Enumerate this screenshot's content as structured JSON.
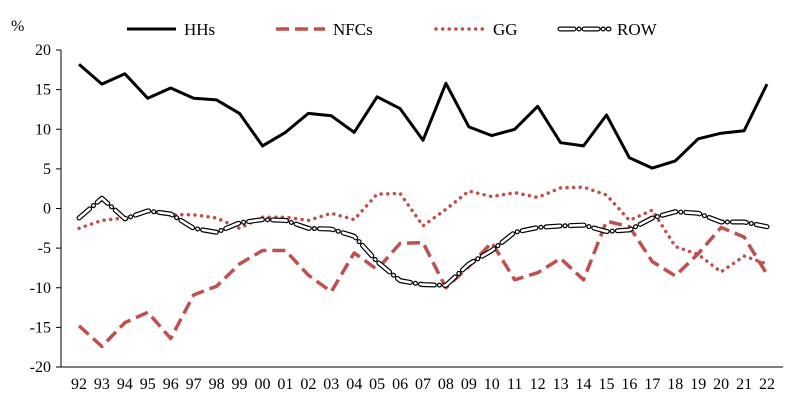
{
  "chart_data": {
    "type": "line",
    "ylabel": "%",
    "ylim": [
      -20,
      20
    ],
    "yticks": [
      "20",
      "15",
      "10",
      "5",
      "0",
      "-5",
      "-10",
      "-15",
      "-20"
    ],
    "categories": [
      "92",
      "93",
      "94",
      "95",
      "96",
      "97",
      "98",
      "99",
      "00",
      "01",
      "02",
      "03",
      "04",
      "05",
      "06",
      "07",
      "08",
      "09",
      "10",
      "11",
      "12",
      "13",
      "14",
      "15",
      "16",
      "17",
      "18",
      "19",
      "20",
      "21",
      "22"
    ],
    "legend_position": "top",
    "grid": false,
    "series": [
      {
        "name": "HHs",
        "color": "#000000",
        "style": "solid",
        "values": [
          18.2,
          15.7,
          17.0,
          13.9,
          15.2,
          13.9,
          13.7,
          12.0,
          7.9,
          9.6,
          12.0,
          11.7,
          9.6,
          14.1,
          12.6,
          8.6,
          15.8,
          10.3,
          9.2,
          10.0,
          12.9,
          8.3,
          7.9,
          11.8,
          6.4,
          5.1,
          6.0,
          8.8,
          9.5,
          9.8,
          15.7
        ]
      },
      {
        "name": "NFCs",
        "color": "#c0504d",
        "style": "dashed",
        "values": [
          -14.8,
          -17.4,
          -14.4,
          -13.1,
          -16.4,
          -10.9,
          -9.8,
          -7.0,
          -5.3,
          -5.3,
          -8.4,
          -10.5,
          -5.6,
          -7.7,
          -4.4,
          -4.3,
          -10.0,
          -7.3,
          -4.3,
          -9.0,
          -8.1,
          -6.3,
          -9.0,
          -1.6,
          -2.3,
          -6.7,
          -8.5,
          -5.7,
          -2.4,
          -3.6,
          -8.3
        ]
      },
      {
        "name": "GG",
        "color": "#c0504d",
        "style": "dotted",
        "values": [
          -2.5,
          -1.5,
          -1.2,
          -0.3,
          -0.8,
          -0.8,
          -1.2,
          -2.5,
          -1.1,
          -1.1,
          -1.5,
          -0.6,
          -1.4,
          1.8,
          1.9,
          -2.2,
          -0.1,
          2.2,
          1.5,
          2.0,
          1.4,
          2.6,
          2.7,
          1.7,
          -1.5,
          -0.2,
          -4.8,
          -5.8,
          -8.0,
          -6.0,
          -7.0
        ]
      },
      {
        "name": "ROW",
        "color": "#000000",
        "style": "dashdot",
        "values": [
          -1.2,
          1.3,
          -1.3,
          -0.3,
          -0.7,
          -2.5,
          -3.0,
          -1.8,
          -1.4,
          -1.5,
          -2.5,
          -2.6,
          -3.5,
          -6.7,
          -9.1,
          -9.6,
          -9.7,
          -7.0,
          -5.3,
          -3.0,
          -2.4,
          -2.2,
          -2.1,
          -2.9,
          -2.7,
          -1.2,
          -0.4,
          -0.6,
          -1.7,
          -1.7,
          -2.3
        ]
      }
    ]
  }
}
